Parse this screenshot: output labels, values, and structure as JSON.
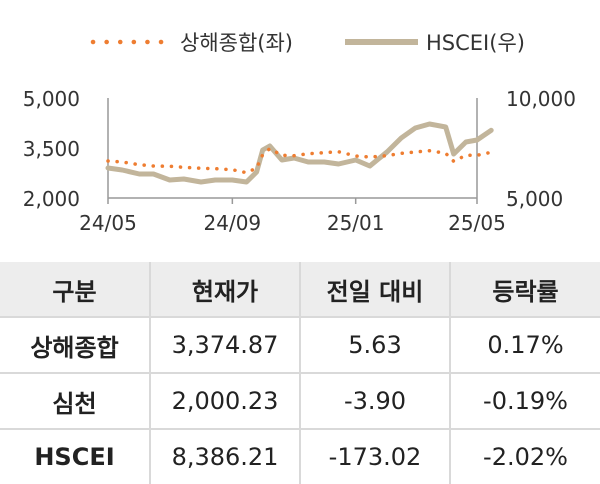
{
  "chart_data": {
    "type": "line",
    "x_ticks": [
      "24/05",
      "24/09",
      "25/01",
      "25/05"
    ],
    "y_left": {
      "ticks": [
        "2,000",
        "3,500",
        "5,000"
      ],
      "range": [
        2000,
        5000
      ]
    },
    "y_right": {
      "ticks": [
        "5,000",
        "10,000"
      ],
      "range": [
        5000,
        10000
      ]
    },
    "series": [
      {
        "name": "상해종합(좌)",
        "axis": "left",
        "color": "#ee7d31",
        "style": "dotted",
        "points": [
          [
            "2024-05-01",
            3110
          ],
          [
            "2024-05-15",
            3080
          ],
          [
            "2024-06-01",
            3000
          ],
          [
            "2024-06-15",
            2960
          ],
          [
            "2024-07-01",
            2950
          ],
          [
            "2024-07-15",
            2920
          ],
          [
            "2024-08-01",
            2890
          ],
          [
            "2024-08-15",
            2880
          ],
          [
            "2024-09-01",
            2850
          ],
          [
            "2024-09-15",
            2760
          ],
          [
            "2024-09-25",
            2900
          ],
          [
            "2024-10-01",
            3300
          ],
          [
            "2024-10-08",
            3480
          ],
          [
            "2024-10-20",
            3280
          ],
          [
            "2024-11-01",
            3270
          ],
          [
            "2024-11-15",
            3330
          ],
          [
            "2024-12-01",
            3360
          ],
          [
            "2024-12-15",
            3390
          ],
          [
            "2025-01-01",
            3260
          ],
          [
            "2025-01-15",
            3230
          ],
          [
            "2025-02-01",
            3270
          ],
          [
            "2025-02-15",
            3340
          ],
          [
            "2025-03-01",
            3380
          ],
          [
            "2025-03-15",
            3420
          ],
          [
            "2025-03-31",
            3340
          ],
          [
            "2025-04-08",
            3100
          ],
          [
            "2025-04-20",
            3280
          ],
          [
            "2025-05-01",
            3280
          ],
          [
            "2025-05-15",
            3370
          ]
        ]
      },
      {
        "name": "HSCEI(우)",
        "axis": "right",
        "color": "#c2b59b",
        "style": "solid",
        "points": [
          [
            "2024-05-01",
            6500
          ],
          [
            "2024-05-15",
            6400
          ],
          [
            "2024-06-01",
            6200
          ],
          [
            "2024-06-15",
            6200
          ],
          [
            "2024-07-01",
            5900
          ],
          [
            "2024-07-15",
            5950
          ],
          [
            "2024-08-01",
            5800
          ],
          [
            "2024-08-15",
            5900
          ],
          [
            "2024-09-01",
            5900
          ],
          [
            "2024-09-15",
            5800
          ],
          [
            "2024-09-25",
            6300
          ],
          [
            "2024-10-01",
            7400
          ],
          [
            "2024-10-08",
            7600
          ],
          [
            "2024-10-20",
            6900
          ],
          [
            "2024-11-01",
            7000
          ],
          [
            "2024-11-15",
            6800
          ],
          [
            "2024-12-01",
            6800
          ],
          [
            "2024-12-15",
            6700
          ],
          [
            "2025-01-01",
            6900
          ],
          [
            "2025-01-15",
            6600
          ],
          [
            "2025-02-01",
            7300
          ],
          [
            "2025-02-15",
            8000
          ],
          [
            "2025-03-01",
            8500
          ],
          [
            "2025-03-15",
            8700
          ],
          [
            "2025-03-31",
            8550
          ],
          [
            "2025-04-08",
            7200
          ],
          [
            "2025-04-20",
            7800
          ],
          [
            "2025-05-01",
            7900
          ],
          [
            "2025-05-15",
            8386
          ]
        ]
      }
    ],
    "grid": false,
    "legend": "top"
  },
  "table": {
    "headers": [
      "구분",
      "현재가",
      "전일 대비",
      "등락률"
    ],
    "rows": [
      [
        "상해종합",
        "3,374.87",
        "5.63",
        "0.17%"
      ],
      [
        "심천",
        "2,000.23",
        "-3.90",
        "-0.19%"
      ],
      [
        "HSCEI",
        "8,386.21",
        "-173.02",
        "-2.02%"
      ]
    ]
  }
}
